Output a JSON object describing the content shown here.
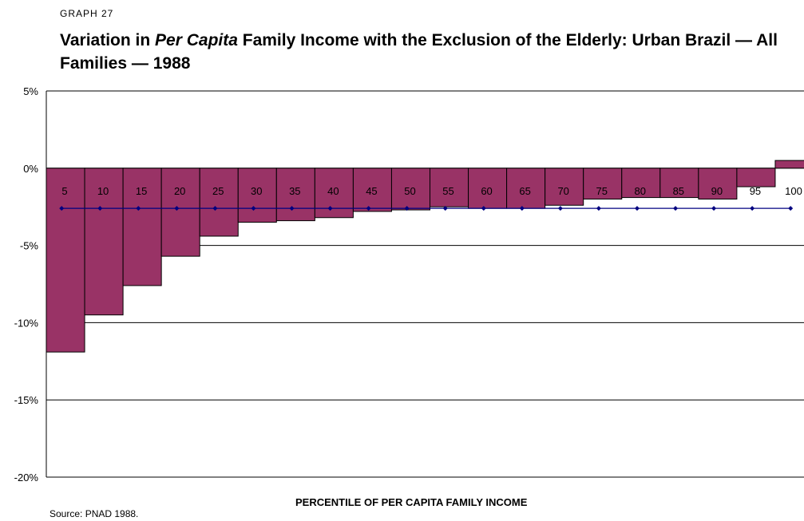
{
  "header": {
    "graph_label": "GRAPH 27",
    "title_part1": "Variation in ",
    "title_italic": "Per Capita",
    "title_part2": " Family Income with the Exclusion of the Elderly: Urban Brazil — All Families — 1988"
  },
  "footer": {
    "source": "Source: PNAD 1988."
  },
  "colors": {
    "bar_fill": "#993366",
    "bar_stroke": "#000000",
    "line": "#000080",
    "grid": "#000000"
  },
  "chart_data": {
    "type": "bar",
    "xlabel": "PERCENTILE OF PER CAPITA FAMILY INCOME",
    "ylabel": "",
    "ylim": [
      -20,
      5
    ],
    "yticks": [
      5,
      0,
      -5,
      -10,
      -15,
      -20
    ],
    "ytick_labels": [
      "5%",
      "0%",
      "-5%",
      "-10%",
      "-15%",
      "-20%"
    ],
    "grid": true,
    "categories": [
      "5",
      "10",
      "15",
      "20",
      "25",
      "30",
      "35",
      "40",
      "45",
      "50",
      "55",
      "60",
      "65",
      "70",
      "75",
      "80",
      "85",
      "90",
      "95",
      "100"
    ],
    "series": [
      {
        "kind": "bar",
        "values": [
          -11.9,
          -9.5,
          -7.6,
          -5.7,
          -4.4,
          -3.5,
          -3.4,
          -3.2,
          -2.8,
          -2.7,
          -2.5,
          -2.6,
          -2.6,
          -2.4,
          -2.0,
          -1.9,
          -1.9,
          -2.0,
          -1.2,
          0.5
        ]
      },
      {
        "kind": "line",
        "values": [
          -2.6,
          -2.6,
          -2.6,
          -2.6,
          -2.6,
          -2.6,
          -2.6,
          -2.6,
          -2.6,
          -2.6,
          -2.6,
          -2.6,
          -2.6,
          -2.6,
          -2.6,
          -2.6,
          -2.6,
          -2.6,
          -2.6,
          -2.6
        ]
      }
    ]
  }
}
